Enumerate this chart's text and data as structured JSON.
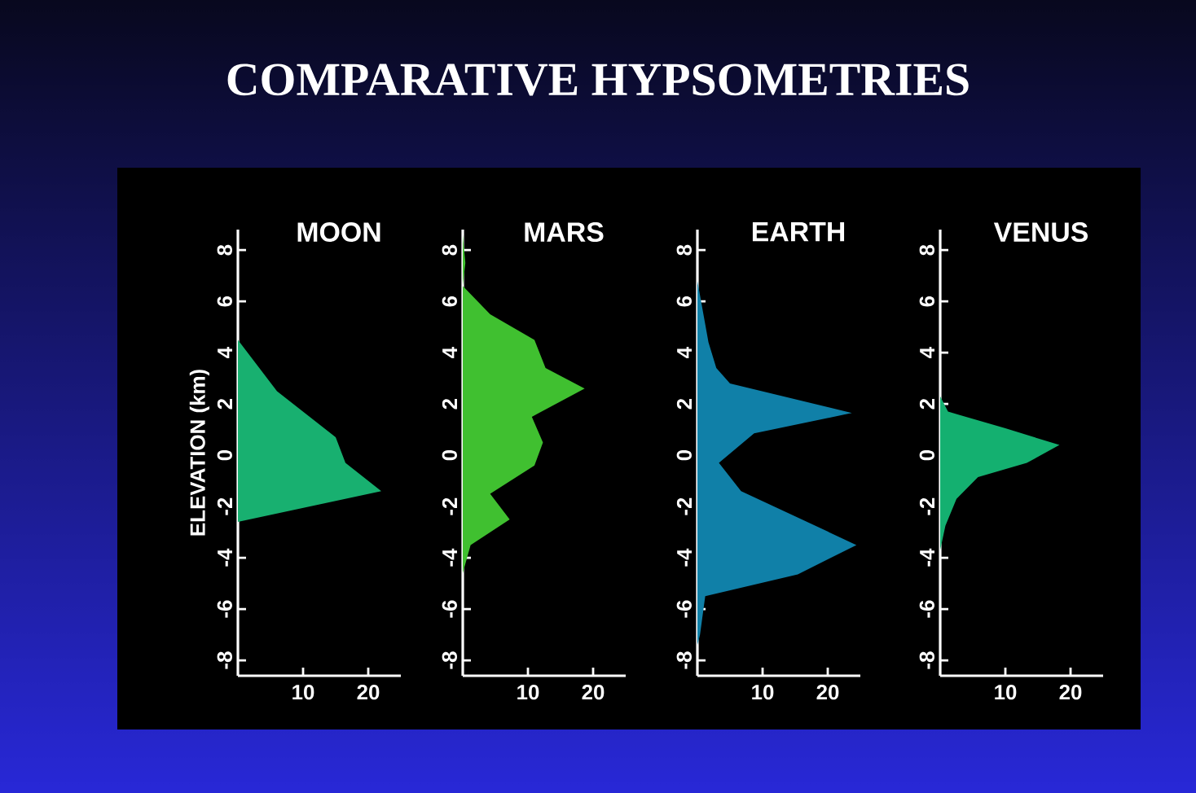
{
  "chart_data": [
    {
      "type": "area",
      "orientation": "horizontal",
      "title": "MOON",
      "ylabel": "ELEVATION (km)",
      "annotations": [
        "COMPARATIVE HYPSOMETRIES"
      ],
      "color": "#18b070",
      "x": [
        -2.6,
        -1.4,
        -0.3,
        0.7,
        2.5,
        4.5
      ],
      "values": [
        0,
        22,
        16.5,
        15,
        6,
        0
      ],
      "xlim": [
        0,
        25
      ],
      "xticks": [
        10,
        20
      ],
      "ylim": [
        -8.6,
        8.8
      ],
      "yticks": [
        -8,
        -6,
        -4,
        -2,
        0,
        2,
        4,
        6,
        8
      ]
    },
    {
      "type": "area",
      "orientation": "horizontal",
      "title": "MARS",
      "color": "#40c030",
      "x": [
        -4.6,
        -3.5,
        -2.5,
        -1.5,
        -0.4,
        0.5,
        1.5,
        2.6,
        3.4,
        4.5,
        5.5,
        6.6,
        7.5,
        8.6
      ],
      "values": [
        0,
        1.2,
        7.2,
        4.2,
        11,
        12.3,
        10.6,
        18.7,
        12.7,
        11,
        4.2,
        0,
        0.4,
        0
      ],
      "xlim": [
        0,
        25
      ],
      "xticks": [
        10,
        20
      ],
      "ylim": [
        -8.6,
        8.8
      ],
      "yticks": [
        -8,
        -6,
        -4,
        -2,
        0,
        2,
        4,
        6,
        8
      ]
    },
    {
      "type": "area",
      "orientation": "horizontal",
      "title": "EARTH",
      "color": "#1080a8",
      "x": [
        -7.4,
        -7,
        -5.5,
        -4.65,
        -3.5,
        -1.4,
        -0.3,
        0.85,
        1.65,
        2.8,
        3.4,
        4.4,
        6.8
      ],
      "values": [
        0,
        0.4,
        1.2,
        15.4,
        24.4,
        6.7,
        3.3,
        8.7,
        23.7,
        5,
        2.9,
        1.7,
        0
      ],
      "xlim": [
        0,
        25
      ],
      "xticks": [
        10,
        20
      ],
      "ylim": [
        -8.6,
        8.8
      ],
      "yticks": [
        -8,
        -6,
        -4,
        -2,
        0,
        2,
        4,
        6,
        8
      ]
    },
    {
      "type": "area",
      "orientation": "horizontal",
      "title": "VENUS",
      "color": "#14b070",
      "x": [
        -3.7,
        -2.75,
        -1.7,
        -0.85,
        -0.3,
        0.4,
        1.05,
        1.7,
        2.3
      ],
      "values": [
        0,
        0.8,
        2.5,
        5.8,
        13.3,
        18.3,
        10,
        1.2,
        0
      ],
      "xlim": [
        0,
        25
      ],
      "xticks": [
        10,
        20
      ],
      "ylim": [
        -8.6,
        8.8
      ],
      "yticks": [
        -8,
        -6,
        -4,
        -2,
        0,
        2,
        4,
        6,
        8
      ]
    }
  ]
}
